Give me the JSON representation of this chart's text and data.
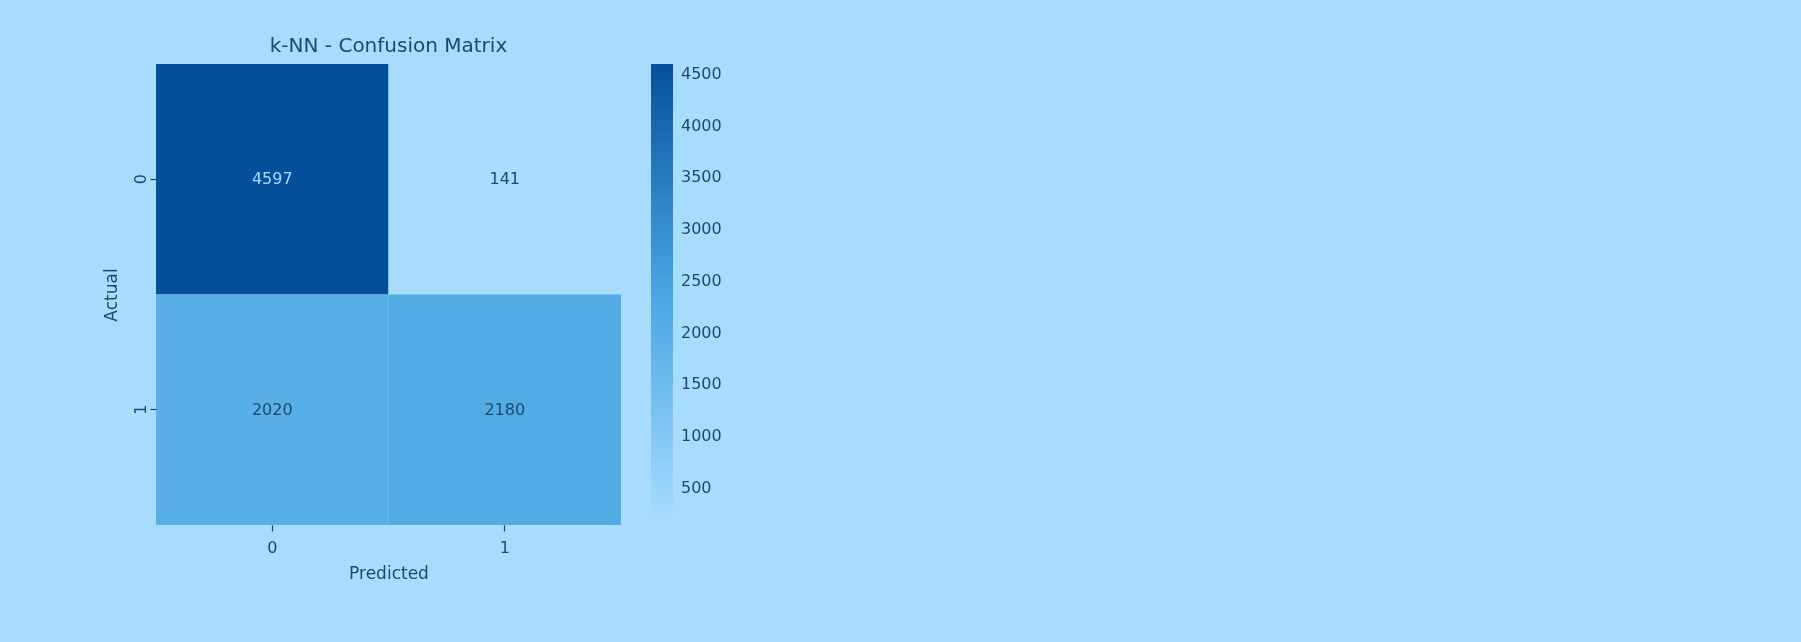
{
  "chart_data": {
    "type": "heatmap",
    "title": "k-NN - Confusion Matrix",
    "xlabel": "Predicted",
    "ylabel": "Actual",
    "categories": [
      "0",
      "1"
    ],
    "y_categories": [
      "0",
      "1"
    ],
    "cells": [
      [
        4597,
        141
      ],
      [
        2020,
        2180
      ]
    ],
    "clim": [
      141,
      4597
    ],
    "cticks": [
      500,
      1000,
      1500,
      2000,
      2500,
      3000,
      3500,
      4000,
      4500
    ],
    "data_labels": true
  }
}
